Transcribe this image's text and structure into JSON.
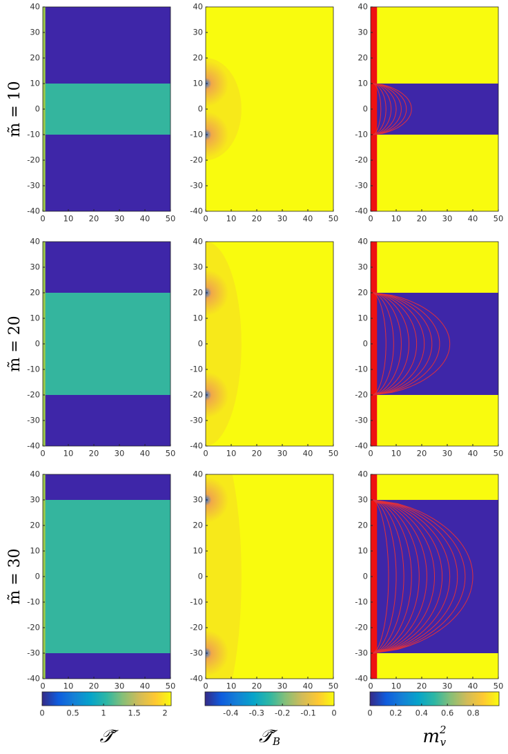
{
  "chart_data": [
    {
      "type": "heatmap",
      "band_halfwidth": 10,
      "background": "#3e26a8",
      "band_color": "#34b59e",
      "edge_color": "#1f8fe0",
      "strip_color": "#9cc84a",
      "strip_width": 1,
      "xlim": [
        0,
        50
      ],
      "ylim": [
        -40,
        40
      ],
      "xticks": [
        0,
        10,
        20,
        30,
        40,
        50
      ],
      "yticks": [
        -40,
        -30,
        -20,
        -10,
        0,
        10,
        20,
        30,
        40
      ]
    },
    {
      "type": "heatmap",
      "band_halfwidth": 10,
      "background": "#f9fb0e",
      "blob_color": "#f0a84a",
      "edge_color": "#3070d8",
      "xlim": [
        0,
        50
      ],
      "ylim": [
        -40,
        40
      ],
      "xticks": [
        0,
        10,
        20,
        30,
        40,
        50
      ],
      "yticks": [
        -40,
        -30,
        -20,
        -10,
        0,
        10,
        20,
        30,
        40
      ]
    },
    {
      "type": "heatmap",
      "band_halfwidth": 10,
      "background": "#f9fb0e",
      "band_color": "#3e26a8",
      "edge_color": "#1f8fe0",
      "strip_color": "#ee1111",
      "strip_width": 2.5,
      "contour_color": "#e0303c",
      "contours": [
        4,
        6,
        8,
        10,
        12,
        14,
        16
      ],
      "xlim": [
        0,
        50
      ],
      "ylim": [
        -40,
        40
      ],
      "xticks": [
        0,
        10,
        20,
        30,
        40,
        50
      ],
      "yticks": [
        -40,
        -30,
        -20,
        -10,
        0,
        10,
        20,
        30,
        40
      ]
    },
    {
      "type": "heatmap",
      "band_halfwidth": 20,
      "background": "#3e26a8",
      "band_color": "#34b59e",
      "edge_color": "#1f8fe0",
      "strip_color": "#9cc84a",
      "strip_width": 1,
      "xlim": [
        0,
        50
      ],
      "ylim": [
        -40,
        40
      ],
      "xticks": [
        0,
        10,
        20,
        30,
        40,
        50
      ],
      "yticks": [
        -40,
        -30,
        -20,
        -10,
        0,
        10,
        20,
        30,
        40
      ]
    },
    {
      "type": "heatmap",
      "band_halfwidth": 20,
      "background": "#f9fb0e",
      "blob_color": "#f0a84a",
      "edge_color": "#3070d8",
      "xlim": [
        0,
        50
      ],
      "ylim": [
        -40,
        40
      ],
      "xticks": [
        0,
        10,
        20,
        30,
        40,
        50
      ],
      "yticks": [
        -40,
        -30,
        -20,
        -10,
        0,
        10,
        20,
        30,
        40
      ]
    },
    {
      "type": "heatmap",
      "band_halfwidth": 20,
      "background": "#f9fb0e",
      "band_color": "#3e26a8",
      "edge_color": "#1f8fe0",
      "strip_color": "#ee1111",
      "strip_width": 2.5,
      "contour_color": "#e0303c",
      "contours": [
        6,
        9,
        12,
        15,
        18,
        21,
        24,
        27,
        31
      ],
      "xlim": [
        0,
        50
      ],
      "ylim": [
        -40,
        40
      ],
      "xticks": [
        0,
        10,
        20,
        30,
        40,
        50
      ],
      "yticks": [
        -40,
        -30,
        -20,
        -10,
        0,
        10,
        20,
        30,
        40
      ]
    },
    {
      "type": "heatmap",
      "band_halfwidth": 30,
      "background": "#3e26a8",
      "band_color": "#34b59e",
      "edge_color": "#1f8fe0",
      "strip_color": "#9cc84a",
      "strip_width": 1,
      "xlim": [
        0,
        50
      ],
      "ylim": [
        -40,
        40
      ],
      "xticks": [
        0,
        10,
        20,
        30,
        40,
        50
      ],
      "yticks": [
        -40,
        -30,
        -20,
        -10,
        0,
        10,
        20,
        30,
        40
      ]
    },
    {
      "type": "heatmap",
      "band_halfwidth": 30,
      "background": "#f9fb0e",
      "blob_color": "#f0a84a",
      "edge_color": "#3070d8",
      "xlim": [
        0,
        50
      ],
      "ylim": [
        -40,
        40
      ],
      "xticks": [
        0,
        10,
        20,
        30,
        40,
        50
      ],
      "yticks": [
        -40,
        -30,
        -20,
        -10,
        0,
        10,
        20,
        30,
        40
      ]
    },
    {
      "type": "heatmap",
      "band_halfwidth": 30,
      "background": "#f9fb0e",
      "band_color": "#3e26a8",
      "edge_color": "#1f8fe0",
      "strip_color": "#ee1111",
      "strip_width": 2.5,
      "contour_color": "#e0303c",
      "contours": [
        7,
        10,
        13,
        16,
        19,
        22,
        25,
        28,
        31,
        34,
        37,
        40
      ],
      "xlim": [
        0,
        50
      ],
      "ylim": [
        -40,
        40
      ],
      "xticks": [
        0,
        10,
        20,
        30,
        40,
        50
      ],
      "yticks": [
        -40,
        -30,
        -20,
        -10,
        0,
        10,
        20,
        30,
        40
      ]
    }
  ],
  "row_labels": [
    "m̃ = 10",
    "m̃ = 20",
    "m̃ = 30"
  ],
  "colorbars": [
    {
      "xlim": [
        0,
        2.1
      ],
      "xticks": [
        0,
        0.5,
        1,
        1.5,
        2
      ],
      "colors": [
        "#352a87",
        "#0f5cdd",
        "#1481d6",
        "#06a4ca",
        "#2eb7a4",
        "#87bf77",
        "#d1bb59",
        "#fec832",
        "#f9fb0e"
      ]
    },
    {
      "xlim": [
        -0.5,
        0
      ],
      "xticks": [
        -0.4,
        -0.3,
        -0.2,
        -0.1,
        0
      ],
      "colors": [
        "#352a87",
        "#0f5cdd",
        "#1481d6",
        "#06a4ca",
        "#2eb7a4",
        "#87bf77",
        "#d1bb59",
        "#fec832",
        "#f9fb0e"
      ]
    },
    {
      "xlim": [
        0,
        1
      ],
      "xticks": [
        0,
        0.2,
        0.4,
        0.6,
        0.8
      ],
      "colors": [
        "#352a87",
        "#0f5cdd",
        "#1481d6",
        "#06a4ca",
        "#2eb7a4",
        "#87bf77",
        "#d1bb59",
        "#fec832",
        "#f9fb0e"
      ]
    }
  ],
  "column_labels": [
    {
      "text": "𝒯̃"
    },
    {
      "text": "𝒯̃",
      "sub": "B"
    },
    {
      "text": "m",
      "sub": "v",
      "sup": "2"
    }
  ]
}
